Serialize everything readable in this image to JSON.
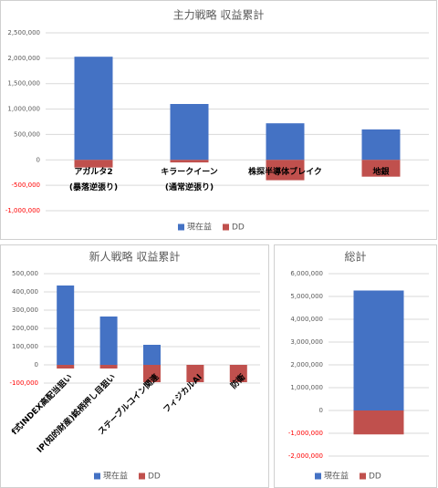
{
  "chart_data": [
    {
      "type": "bar",
      "title": "主力戦略 収益累計",
      "categories": [
        [
          "アガルタ2",
          "(暴落逆張り)"
        ],
        [
          "キラークイーン",
          "(通常逆張り)"
        ],
        [
          "株探半導体ブレイク"
        ],
        [
          "地銀"
        ]
      ],
      "series": [
        {
          "name": "現在益",
          "color": "#4472c4",
          "values": [
            2030000,
            1100000,
            720000,
            600000
          ]
        },
        {
          "name": "DD",
          "color": "#c0504d",
          "values": [
            -150000,
            -50000,
            -400000,
            -330000
          ]
        }
      ],
      "ylim": [
        -1000000,
        2500000
      ],
      "yticks": [
        {
          "value": -1000000,
          "label": "-1,000,000"
        },
        {
          "value": -500000,
          "label": "-500,000"
        },
        0,
        {
          "value": 500000,
          "label": "500,000"
        },
        {
          "value": 1000000,
          "label": "1,000,000"
        },
        {
          "value": 1500000,
          "label": "1,500,000"
        },
        {
          "value": 2000000,
          "label": "2,000,000"
        },
        {
          "value": 2500000,
          "label": "2,500,000"
        }
      ],
      "grid": true,
      "legend": "bottom",
      "negative_tick_color": "#ff0000",
      "category_label_rotation": 0
    },
    {
      "type": "bar",
      "title": "新人戦略 収益累計",
      "categories": [
        "f式INDEX高配当狙い",
        "IP(知的財産)銘柄押し目狙い",
        "ステーブルコイン関連",
        "フィジカルAI",
        "防衛"
      ],
      "series": [
        {
          "name": "現在益",
          "color": "#4472c4",
          "values": [
            435000,
            265000,
            110000,
            0,
            0
          ]
        },
        {
          "name": "DD",
          "color": "#c0504d",
          "values": [
            -20000,
            -20000,
            -95000,
            -95000,
            -95000
          ]
        }
      ],
      "ylim": [
        -100000,
        500000
      ],
      "yticks": [
        {
          "value": -100000,
          "label": "-100,000"
        },
        0,
        {
          "value": 100000,
          "label": "100,000"
        },
        {
          "value": 200000,
          "label": "200,000"
        },
        {
          "value": 300000,
          "label": "300,000"
        },
        {
          "value": 400000,
          "label": "400,000"
        },
        {
          "value": 500000,
          "label": "500,000"
        }
      ],
      "grid": true,
      "legend": "bottom",
      "negative_tick_color": "#ff0000",
      "category_label_rotation": -45
    },
    {
      "type": "bar",
      "title": "総計",
      "categories": [
        null
      ],
      "series": [
        {
          "name": "現在益",
          "color": "#4472c4",
          "values": [
            5260000
          ]
        },
        {
          "name": "DD",
          "color": "#c0504d",
          "values": [
            -1050000
          ]
        }
      ],
      "ylim": [
        -2000000,
        6000000
      ],
      "yticks": [
        {
          "value": -2000000,
          "label": "-2,000,000"
        },
        {
          "value": -1000000,
          "label": "-1,000,000"
        },
        0,
        {
          "value": 1000000,
          "label": "1,000,000"
        },
        {
          "value": 2000000,
          "label": "2,000,000"
        },
        {
          "value": 3000000,
          "label": "3,000,000"
        },
        {
          "value": 4000000,
          "label": "4,000,000"
        },
        {
          "value": 5000000,
          "label": "5,000,000"
        },
        {
          "value": 6000000,
          "label": "6,000,000"
        }
      ],
      "grid": true,
      "legend": "bottom",
      "negative_tick_color": "#ff0000",
      "category_label_rotation": 0
    }
  ]
}
